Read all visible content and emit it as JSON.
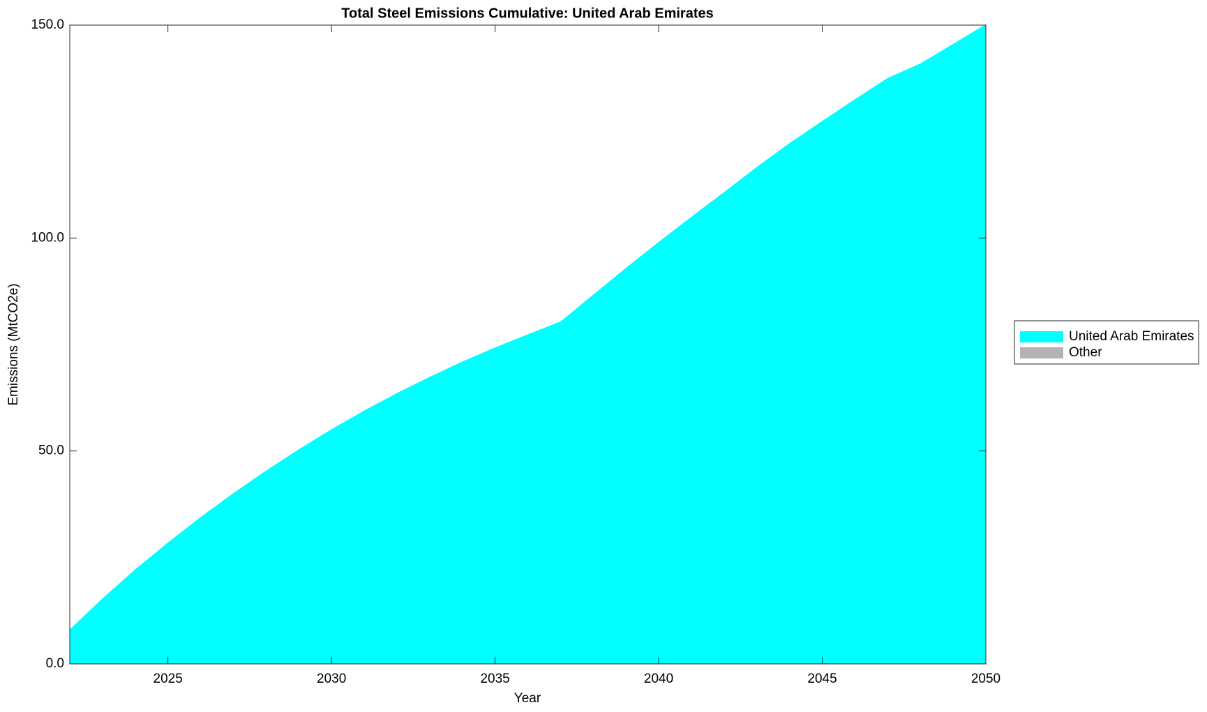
{
  "chart_data": {
    "type": "stacked_area",
    "title": "Total Steel Emissions Cumulative: United Arab Emirates",
    "xlabel": "Year",
    "ylabel": "Emissions (MtCO2e)",
    "x": [
      2022,
      2023,
      2024,
      2025,
      2026,
      2027,
      2028,
      2029,
      2030,
      2031,
      2032,
      2033,
      2034,
      2035,
      2036,
      2037,
      2038,
      2039,
      2040,
      2041,
      2042,
      2043,
      2044,
      2045,
      2046,
      2047,
      2048,
      2049,
      2050
    ],
    "series": [
      {
        "name": "United Arab Emirates",
        "color": "#00ffff",
        "values": [
          8.1,
          15.4,
          22.2,
          28.5,
          34.5,
          40.1,
          45.4,
          50.4,
          55.1,
          59.5,
          63.6,
          67.4,
          71.0,
          74.3,
          77.4,
          80.4,
          86.7,
          93.0,
          99.1,
          105.0,
          110.8,
          116.7,
          122.3,
          127.5,
          132.6,
          137.6,
          141.0,
          145.6,
          150.2
        ]
      },
      {
        "name": "Other",
        "color": "#b3b3b3",
        "values": [
          0,
          0,
          0,
          0,
          0,
          0,
          0,
          0,
          0,
          0,
          0,
          0,
          0,
          0,
          0,
          0,
          0,
          0,
          0,
          0,
          0,
          0,
          0,
          0,
          0,
          0,
          0,
          0,
          0
        ]
      }
    ],
    "xlim": [
      2022,
      2050
    ],
    "ylim": [
      0,
      150
    ],
    "xticks": [
      2025,
      2030,
      2035,
      2040,
      2045,
      2050
    ],
    "yticks": [
      {
        "value": 0,
        "label": "0.0"
      },
      {
        "value": 50,
        "label": "50.0"
      },
      {
        "value": 100,
        "label": "100.0"
      },
      {
        "value": 150,
        "label": "150.0"
      }
    ],
    "legend": "outside-right"
  }
}
